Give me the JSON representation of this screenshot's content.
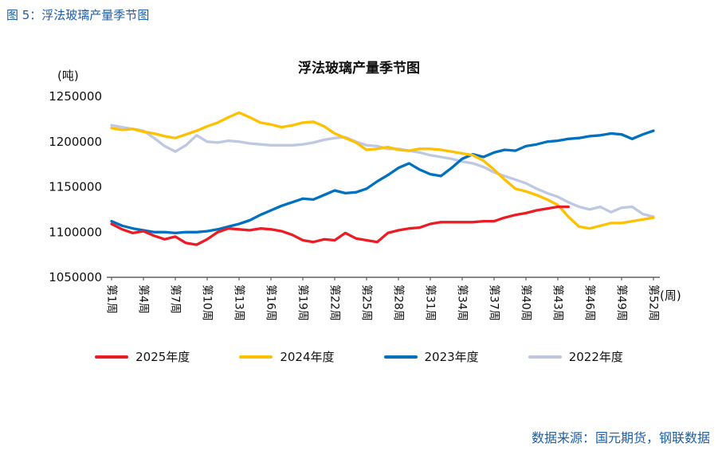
{
  "page": {
    "caption": "图 5：浮法玻璃产量季节图",
    "source": "数据来源：国元期货，钢联数据",
    "accent_color": "#1c5fa8"
  },
  "chart_data": {
    "type": "line",
    "title": "浮法玻璃产量季节图",
    "y_unit_label": "(吨)",
    "x_unit_label": "(周)",
    "xlabel": "",
    "ylabel": "",
    "grid": false,
    "legend_position": "bottom",
    "ylim": [
      1050000,
      1250000
    ],
    "y_ticks": [
      1050000,
      1100000,
      1150000,
      1200000,
      1250000
    ],
    "x_range": [
      1,
      52
    ],
    "x_tick_weeks": [
      1,
      4,
      7,
      10,
      13,
      16,
      19,
      22,
      25,
      28,
      31,
      34,
      37,
      40,
      43,
      46,
      49,
      52
    ],
    "x_tick_labels": [
      "第1周",
      "第4周",
      "第7周",
      "第10周",
      "第13周",
      "第16周",
      "第19周",
      "第22周",
      "第25周",
      "第28周",
      "第31周",
      "第34周",
      "第37周",
      "第40周",
      "第43周",
      "第46周",
      "第49周",
      "第52周"
    ],
    "series": [
      {
        "name": "2025年度",
        "color": "#ec1c24",
        "start_week": 1,
        "values": [
          1109000,
          1103000,
          1099000,
          1101000,
          1096000,
          1092000,
          1095000,
          1088000,
          1086000,
          1092000,
          1100000,
          1104000,
          1103000,
          1102000,
          1104000,
          1103000,
          1101000,
          1097000,
          1091000,
          1089000,
          1092000,
          1091000,
          1099000,
          1093000,
          1091000,
          1089000,
          1099000,
          1102000,
          1104000,
          1105000,
          1109000,
          1111000,
          1111000,
          1111000,
          1111000,
          1112000,
          1112000,
          1116000,
          1119000,
          1121000,
          1124000,
          1126000,
          1128000,
          1128000
        ]
      },
      {
        "name": "2024年度",
        "color": "#ffc000",
        "start_week": 1,
        "values": [
          1215000,
          1213000,
          1214000,
          1211000,
          1209000,
          1206000,
          1204000,
          1208000,
          1212000,
          1217000,
          1221000,
          1227000,
          1232000,
          1227000,
          1221000,
          1219000,
          1216000,
          1218000,
          1221000,
          1222000,
          1217000,
          1209000,
          1204000,
          1199000,
          1191000,
          1192000,
          1194000,
          1191000,
          1190000,
          1192000,
          1192000,
          1191000,
          1189000,
          1187000,
          1185000,
          1179000,
          1169000,
          1158000,
          1148000,
          1145000,
          1141000,
          1136000,
          1130000,
          1117000,
          1106000,
          1104000,
          1107000,
          1110000,
          1110000,
          1112000,
          1114000,
          1116000
        ]
      },
      {
        "name": "2023年度",
        "color": "#0070c0",
        "start_week": 1,
        "values": [
          1112000,
          1107000,
          1104000,
          1102000,
          1100000,
          1100000,
          1099000,
          1100000,
          1100000,
          1101000,
          1103000,
          1106000,
          1109000,
          1113000,
          1119000,
          1124000,
          1129000,
          1133000,
          1137000,
          1136000,
          1141000,
          1146000,
          1143000,
          1144000,
          1148000,
          1156000,
          1163000,
          1171000,
          1176000,
          1169000,
          1164000,
          1162000,
          1171000,
          1181000,
          1186000,
          1183000,
          1188000,
          1191000,
          1190000,
          1195000,
          1197000,
          1200000,
          1201000,
          1203000,
          1204000,
          1206000,
          1207000,
          1209000,
          1208000,
          1203000,
          1208000,
          1212000
        ]
      },
      {
        "name": "2022年度",
        "color": "#bfc8e2",
        "start_week": 1,
        "values": [
          1218000,
          1216000,
          1214000,
          1212000,
          1204000,
          1195000,
          1189000,
          1196000,
          1207000,
          1200000,
          1199000,
          1201000,
          1200000,
          1198000,
          1197000,
          1196000,
          1196000,
          1196000,
          1197000,
          1199000,
          1202000,
          1204000,
          1205000,
          1200000,
          1196000,
          1195000,
          1192000,
          1192000,
          1190000,
          1188000,
          1185000,
          1183000,
          1181000,
          1178000,
          1176000,
          1172000,
          1166000,
          1162000,
          1158000,
          1154000,
          1148000,
          1143000,
          1139000,
          1133000,
          1128000,
          1125000,
          1128000,
          1122000,
          1127000,
          1128000,
          1120000,
          1117000
        ]
      }
    ]
  }
}
